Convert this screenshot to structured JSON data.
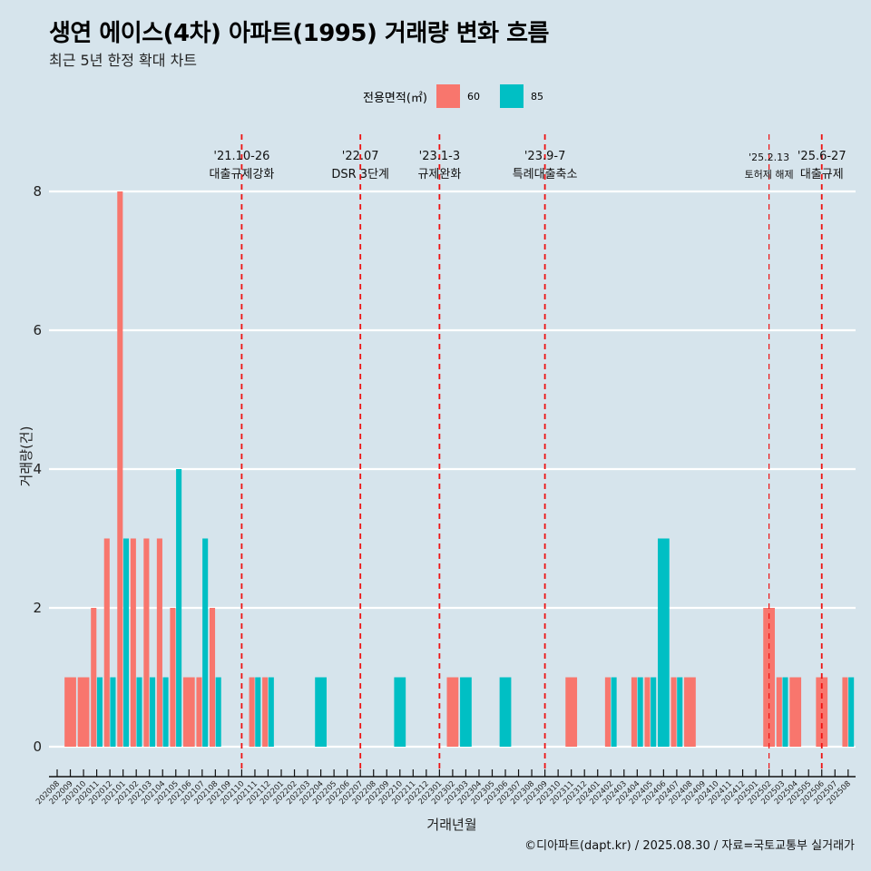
{
  "chart_data": {
    "type": "bar",
    "title": "생연 에이스(4차) 아파트(1995) 거래량 변화 흐름",
    "subtitle": "최근 5년 한정 확대 차트",
    "xlabel": "거래년월",
    "ylabel": "거래량(건)",
    "ylim": [
      0,
      8
    ],
    "yticks": [
      0,
      2,
      4,
      6,
      8
    ],
    "grid": true,
    "legend": {
      "title": "전용면적(㎡)",
      "position": "top-center"
    },
    "categories": [
      "202008",
      "202009",
      "202010",
      "202011",
      "202012",
      "202101",
      "202102",
      "202103",
      "202104",
      "202105",
      "202106",
      "202107",
      "202108",
      "202109",
      "202110",
      "202111",
      "202112",
      "202201",
      "202202",
      "202203",
      "202204",
      "202205",
      "202206",
      "202207",
      "202208",
      "202209",
      "202210",
      "202211",
      "202212",
      "202301",
      "202302",
      "202303",
      "202304",
      "202305",
      "202306",
      "202307",
      "202308",
      "202309",
      "202310",
      "202311",
      "202312",
      "202401",
      "202402",
      "202403",
      "202404",
      "202405",
      "202406",
      "202407",
      "202408",
      "202409",
      "202410",
      "202411",
      "202412",
      "202501",
      "202502",
      "202503",
      "202504",
      "202505",
      "202506",
      "202507",
      "202508"
    ],
    "series": [
      {
        "name": "60",
        "color": "#f8766d",
        "values": [
          0,
          1,
          1,
          2,
          3,
          8,
          3,
          3,
          3,
          2,
          1,
          1,
          2,
          0,
          0,
          1,
          1,
          0,
          0,
          0,
          0,
          0,
          0,
          0,
          0,
          0,
          0,
          0,
          0,
          0,
          1,
          0,
          0,
          0,
          0,
          0,
          0,
          0,
          0,
          1,
          0,
          0,
          1,
          0,
          1,
          1,
          0,
          1,
          1,
          0,
          0,
          0,
          0,
          0,
          2,
          1,
          1,
          0,
          1,
          0,
          1
        ]
      },
      {
        "name": "85",
        "color": "#00bfc4",
        "values": [
          0,
          0,
          0,
          1,
          1,
          3,
          1,
          1,
          1,
          4,
          0,
          3,
          1,
          0,
          0,
          1,
          1,
          0,
          0,
          0,
          1,
          0,
          0,
          0,
          0,
          0,
          1,
          0,
          0,
          0,
          0,
          1,
          0,
          0,
          1,
          0,
          0,
          0,
          0,
          0,
          0,
          0,
          1,
          0,
          1,
          1,
          3,
          1,
          0,
          0,
          0,
          0,
          0,
          0,
          0,
          1,
          0,
          0,
          0,
          0,
          1
        ]
      }
    ],
    "annotations": [
      {
        "month": "202110",
        "date": "'21.10-26",
        "label": "대출규제강화",
        "small": false
      },
      {
        "month": "202207",
        "date": "'22.07",
        "label": "DSR 3단계",
        "small": false
      },
      {
        "month": "202301",
        "date": "'23.1-3",
        "label": "규제완화",
        "small": false
      },
      {
        "month": "202309",
        "date": "'23.9-7",
        "label": "특례대출축소",
        "small": false
      },
      {
        "month": "202502",
        "date": "'25.2.13",
        "label": "토허제 해제",
        "small": true
      },
      {
        "month": "202506",
        "date": "'25.6-27",
        "label": "대출규제",
        "small": false
      }
    ],
    "annotation_line_color": "#ee1111"
  },
  "footer": "©디아파트(dapt.kr) / 2025.08.30 / 자료=국토교통부 실거래가"
}
